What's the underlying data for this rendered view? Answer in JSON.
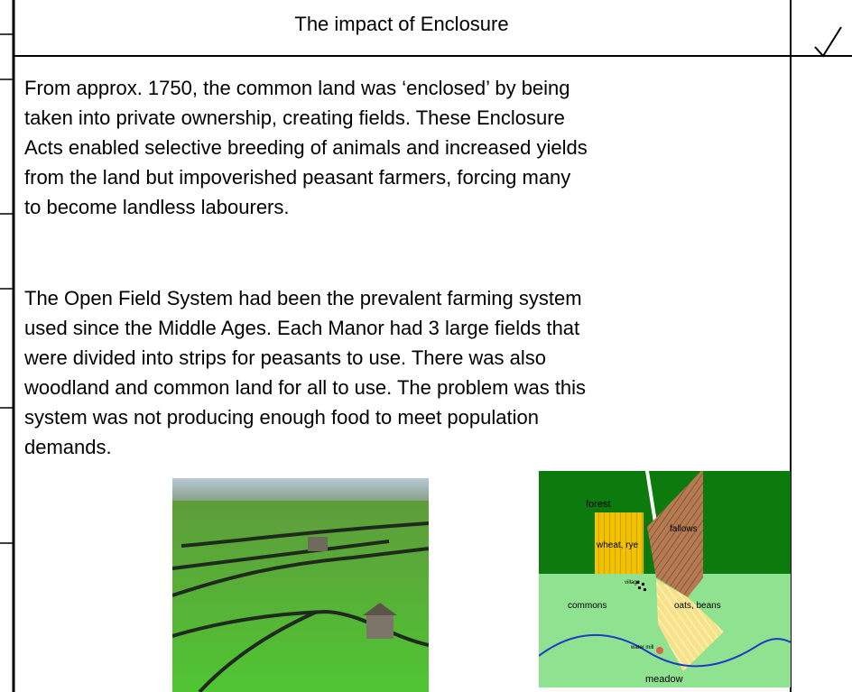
{
  "header": {
    "title": "The impact of Enclosure"
  },
  "paragraphs": [
    [
      "From approx. 1750, the common land was ‘enclosed’ by being",
      "taken into private ownership, creating fields. These Enclosure",
      "Acts enabled selective breeding of animals and increased yields",
      "from the land but impoverished peasant farmers, forcing many",
      "to become landless labourers."
    ],
    [
      "The Open Field System had been the prevalent farming system",
      "used since the Middle Ages. Each Manor had 3 large fields that",
      "were divided into strips for peasants to use. There was also",
      "woodland and common land for all to use. The problem was this",
      "system was not producing enough food to meet population",
      "demands."
    ]
  ],
  "diagram": {
    "labels": [
      "forest",
      "fallows",
      "wheat, rye",
      "village",
      "commons",
      "oats, beans",
      "water mill",
      "meadow"
    ]
  }
}
